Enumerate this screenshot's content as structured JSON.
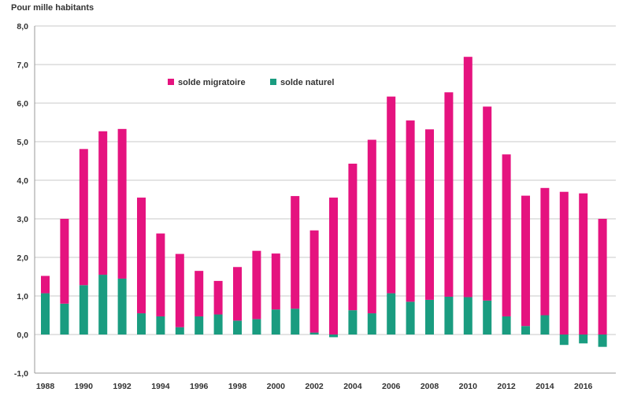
{
  "chart_data": {
    "type": "bar",
    "stacking": "stacked",
    "y_axis_title": "Pour mille habitants",
    "ylim": [
      -1,
      8
    ],
    "y_ticks": [
      "-1,0",
      "0,0",
      "1,0",
      "2,0",
      "3,0",
      "4,0",
      "5,0",
      "6,0",
      "7,0",
      "8,0"
    ],
    "grid": "horizontal",
    "legend_position": "top-left",
    "x_tick_labels": [
      "1988",
      "1990",
      "1992",
      "1994",
      "1996",
      "1998",
      "2000",
      "2002",
      "2004",
      "2006",
      "2008",
      "2010",
      "2012",
      "2014",
      "2016"
    ],
    "categories": [
      1988,
      1989,
      1990,
      1991,
      1992,
      1993,
      1994,
      1995,
      1996,
      1997,
      1998,
      1999,
      2000,
      2001,
      2002,
      2003,
      2004,
      2005,
      2006,
      2007,
      2008,
      2009,
      2010,
      2011,
      2012,
      2013,
      2014,
      2015,
      2016,
      2017
    ],
    "series": [
      {
        "name": "solde naturel",
        "color": "#1a9c80",
        "values": [
          1.07,
          0.8,
          1.28,
          1.55,
          1.45,
          0.55,
          0.47,
          0.19,
          0.47,
          0.52,
          0.36,
          0.4,
          0.65,
          0.67,
          0.05,
          -0.07,
          0.63,
          0.55,
          1.07,
          0.85,
          0.9,
          0.98,
          0.97,
          0.88,
          0.47,
          0.22,
          0.5,
          -0.27,
          -0.23,
          -0.32
        ]
      },
      {
        "name": "solde migratoire",
        "color": "#e5137f",
        "values": [
          0.45,
          2.2,
          3.53,
          3.72,
          3.88,
          3.0,
          2.15,
          1.9,
          1.18,
          0.87,
          1.39,
          1.77,
          1.45,
          2.92,
          2.65,
          3.55,
          3.8,
          4.5,
          5.1,
          4.7,
          4.42,
          5.3,
          6.23,
          5.03,
          4.2,
          3.38,
          3.3,
          3.7,
          3.66,
          3.0
        ]
      }
    ]
  }
}
